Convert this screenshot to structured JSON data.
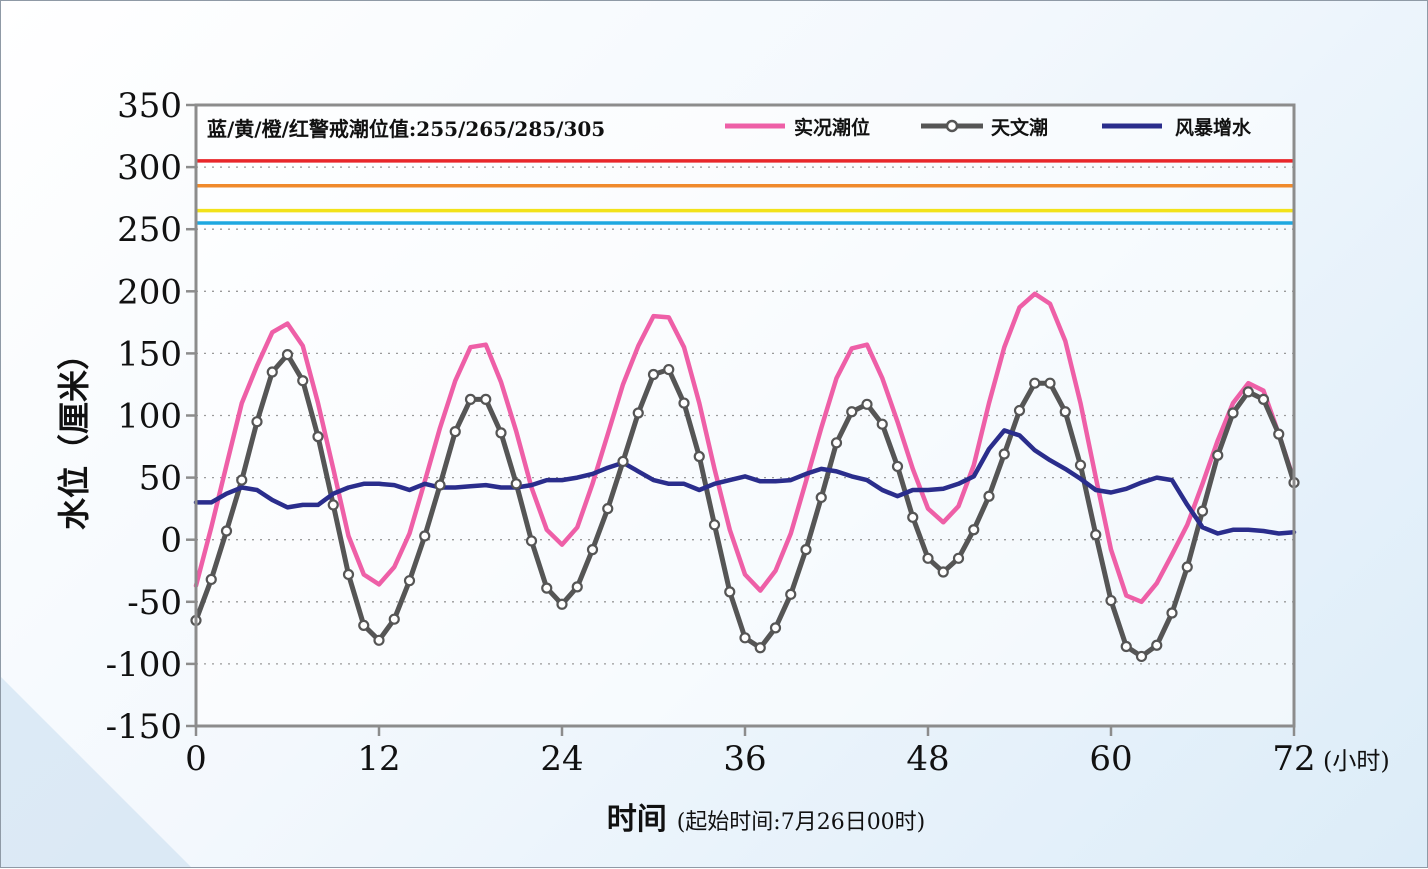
{
  "chart_data": {
    "type": "line",
    "xlabel": "时间",
    "xlabel_note": "(起始时间:7月26日00时)",
    "x_unit": "(小时)",
    "ylabel": "水位（厘米）",
    "ylim": [
      -150,
      350
    ],
    "xlim": [
      0,
      72
    ],
    "y_ticks": [
      350,
      300,
      250,
      200,
      150,
      100,
      50,
      0,
      -50,
      -100,
      -150
    ],
    "x_ticks": [
      0,
      12,
      24,
      36,
      48,
      60,
      72
    ],
    "grid": "dotted horizontal",
    "legend_position": "top-right",
    "annotation": "蓝/黄/橙/红警戒潮位值:255/265/285/305",
    "thresholds": [
      {
        "level": "blue",
        "value": 255,
        "color": "#1fa8e0"
      },
      {
        "level": "yellow",
        "value": 265,
        "color": "#f2e21a"
      },
      {
        "level": "orange",
        "value": 285,
        "color": "#f08a2c"
      },
      {
        "level": "red",
        "value": 305,
        "color": "#e8262a"
      }
    ],
    "x": [
      0,
      1,
      2,
      3,
      4,
      5,
      6,
      7,
      8,
      9,
      10,
      11,
      12,
      13,
      14,
      15,
      16,
      17,
      18,
      19,
      20,
      21,
      22,
      23,
      24,
      25,
      26,
      27,
      28,
      29,
      30,
      31,
      32,
      33,
      34,
      35,
      36,
      37,
      38,
      39,
      40,
      41,
      42,
      43,
      44,
      45,
      46,
      47,
      48,
      49,
      50,
      51,
      52,
      53,
      54,
      55,
      56,
      57,
      58,
      59,
      60,
      61,
      62,
      63,
      64,
      65,
      66,
      67,
      68,
      69,
      70,
      71,
      72
    ],
    "series": [
      {
        "name": "实况潮位",
        "color": "#ee5fa7",
        "marker": "none",
        "values": [
          -37,
          10,
          60,
          110,
          140,
          167,
          174,
          156,
          110,
          57,
          3,
          -28,
          -36,
          -22,
          5,
          47,
          90,
          128,
          155,
          157,
          127,
          87,
          42,
          8,
          -4,
          10,
          45,
          85,
          125,
          156,
          180,
          179,
          155,
          110,
          57,
          8,
          -28,
          -41,
          -25,
          5,
          47,
          90,
          130,
          154,
          157,
          130,
          95,
          57,
          25,
          14,
          27,
          60,
          110,
          155,
          187,
          198,
          190,
          160,
          110,
          50,
          -8,
          -45,
          -50,
          -35,
          -12,
          12,
          45,
          80,
          110,
          126,
          120,
          85,
          48
        ]
      },
      {
        "name": "天文潮",
        "color": "#555555",
        "marker": "circle",
        "values": [
          -65,
          -32,
          7,
          48,
          95,
          135,
          149,
          128,
          83,
          28,
          -28,
          -69,
          -81,
          -64,
          -33,
          3,
          44,
          87,
          113,
          113,
          86,
          45,
          -1,
          -39,
          -52,
          -38,
          -8,
          25,
          63,
          102,
          133,
          137,
          110,
          67,
          12,
          -42,
          -79,
          -87,
          -71,
          -44,
          -8,
          34,
          78,
          103,
          109,
          93,
          59,
          18,
          -15,
          -26,
          -15,
          8,
          35,
          69,
          104,
          126,
          126,
          103,
          60,
          4,
          -49,
          -86,
          -94,
          -85,
          -59,
          -22,
          23,
          68,
          102,
          119,
          113,
          85,
          46
        ]
      },
      {
        "name": "风暴增水",
        "color": "#2a2d8c",
        "marker": "none",
        "values": [
          30,
          30,
          37,
          42,
          40,
          32,
          26,
          28,
          28,
          37,
          42,
          45,
          45,
          44,
          40,
          45,
          42,
          42,
          43,
          44,
          42,
          42,
          44,
          48,
          48,
          50,
          53,
          58,
          62,
          55,
          48,
          45,
          45,
          40,
          45,
          48,
          51,
          47,
          47,
          48,
          53,
          57,
          55,
          51,
          48,
          40,
          35,
          40,
          40,
          41,
          45,
          51,
          73,
          88,
          84,
          72,
          64,
          57,
          49,
          40,
          38,
          41,
          46,
          50,
          48,
          28,
          10,
          5,
          8,
          8,
          7,
          5,
          6
        ]
      }
    ]
  }
}
